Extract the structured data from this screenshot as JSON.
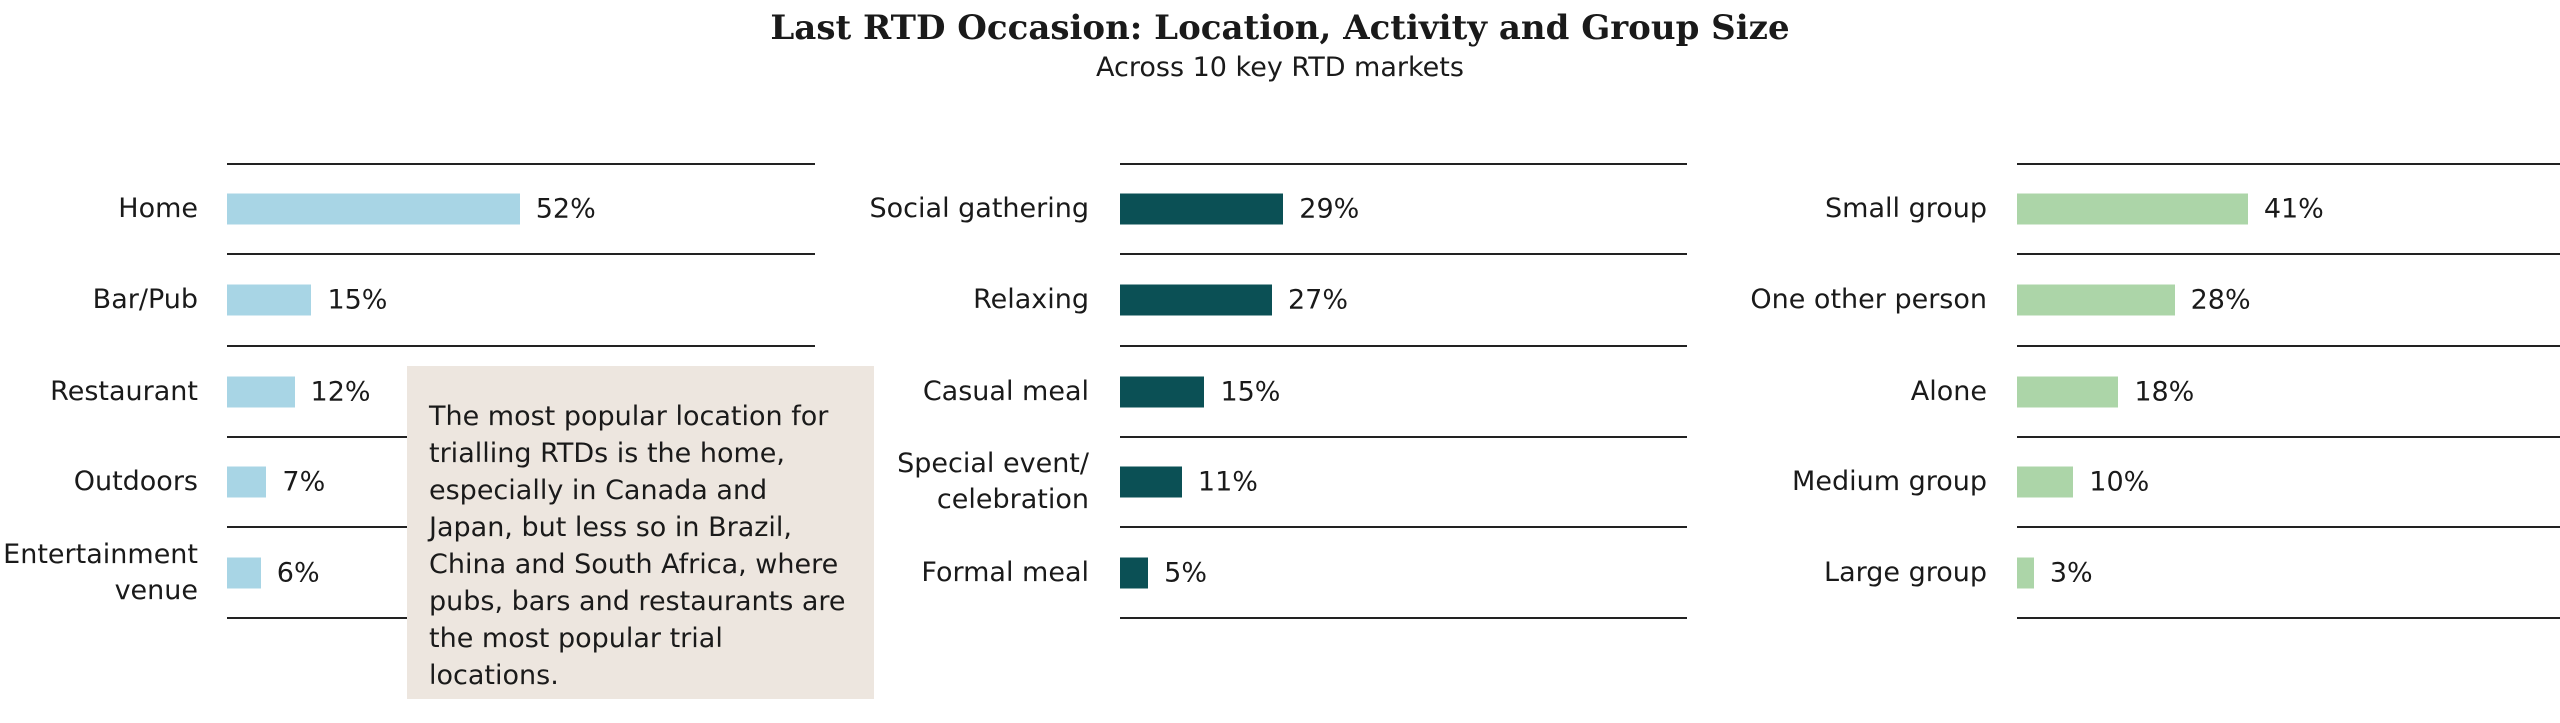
{
  "title": "Last RTD Occasion: Location, Activity and Group Size",
  "subtitle": "Across 10 key RTD markets",
  "note": "The most popular location for trialling RTDs is the home, especially in Canada and Japan, but less so in Brazil, China and South Africa, where pubs, bars and restaurants are the most popular trial locations.",
  "chart_data": [
    {
      "type": "bar",
      "orientation": "horizontal",
      "color": "#a8d5e5",
      "categories": [
        "Home",
        "Bar/Pub",
        "Restaurant",
        "Outdoors",
        "Entertainment\nvenue"
      ],
      "values": [
        52,
        15,
        12,
        7,
        6
      ],
      "value_labels": [
        "52%",
        "15%",
        "12%",
        "7%",
        "6%"
      ]
    },
    {
      "type": "bar",
      "orientation": "horizontal",
      "color": "#0b5055",
      "categories": [
        "Social gathering",
        "Relaxing",
        "Casual meal",
        "Special event/\ncelebration",
        "Formal meal"
      ],
      "values": [
        29,
        27,
        15,
        11,
        5
      ],
      "value_labels": [
        "29%",
        "27%",
        "15%",
        "11%",
        "5%"
      ]
    },
    {
      "type": "bar",
      "orientation": "horizontal",
      "color": "#acd5a8",
      "categories": [
        "Small group",
        "One other person",
        "Alone",
        "Medium group",
        "Large group"
      ],
      "values": [
        41,
        28,
        18,
        10,
        3
      ],
      "value_labels": [
        "41%",
        "28%",
        "18%",
        "10%",
        "3%"
      ]
    }
  ]
}
